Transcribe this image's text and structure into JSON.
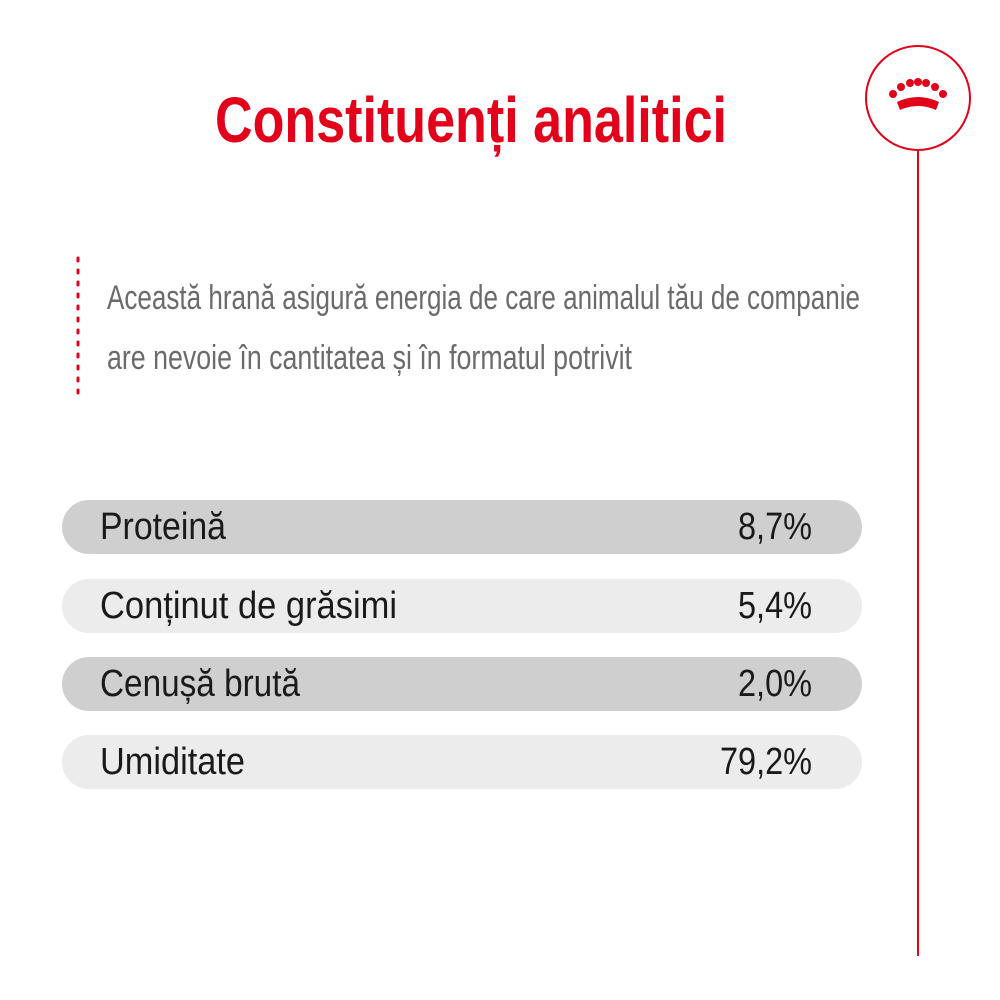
{
  "header": {
    "title": "Constituenți analitici"
  },
  "description": [
    "Această hrană asigură energia de care animalul tău de companie",
    "are nevoie în cantitatea și în formatul potrivit"
  ],
  "table": {
    "rows": [
      [
        "Proteină",
        "8,7%"
      ],
      [
        "Conținut de grăsimi",
        "5,4%"
      ],
      [
        "Cenușă brută",
        "2,0%"
      ],
      [
        "Umiditate",
        "79,2%"
      ]
    ]
  }
}
